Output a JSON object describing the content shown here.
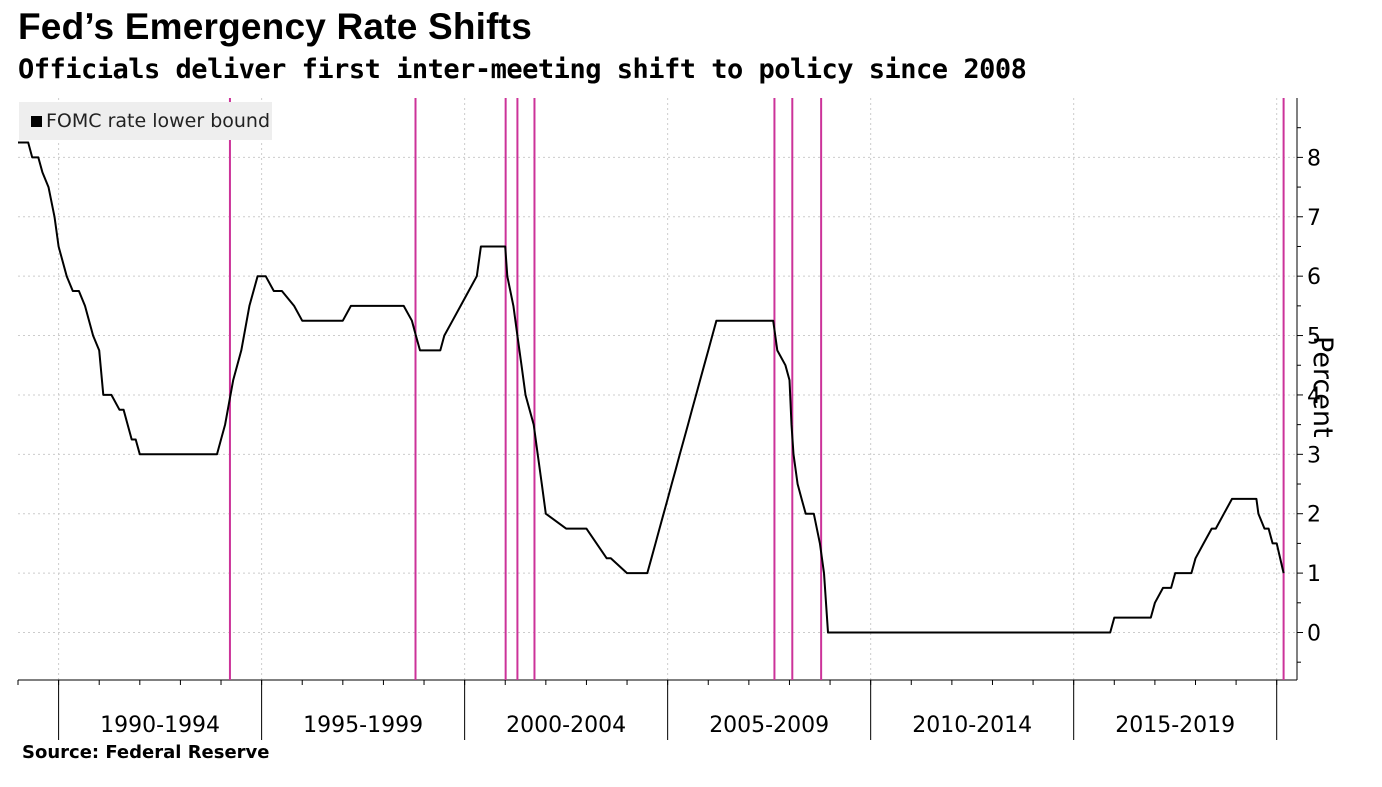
{
  "title": "Fed’s Emergency Rate Shifts",
  "subtitle": "Officials deliver first inter-meeting shift to policy since 2008",
  "source": "Source: Federal Reserve",
  "colors": {
    "line": "#000000",
    "emergency": "#cc3399",
    "grid": "#cccccc",
    "legend_bg": "#eeeeee"
  },
  "chart_data": {
    "type": "line",
    "title": "Fed’s Emergency Rate Shifts",
    "subtitle": "Officials deliver first inter-meeting shift to policy since 2008",
    "ylabel": "Percent",
    "xlabel": "",
    "ylim": [
      -0.8,
      9
    ],
    "yticks": [
      0,
      1,
      2,
      3,
      4,
      5,
      6,
      7,
      8
    ],
    "xlim": [
      1989.0,
      2020.5
    ],
    "x_ticks": [
      1990,
      1995,
      2000,
      2005,
      2010,
      2015,
      2020
    ],
    "x_tick_labels": [
      "1990-1994",
      "1995-1999",
      "2000-2004",
      "2005-2009",
      "2010-2014",
      "2015-2019"
    ],
    "legend": {
      "position": "top-left",
      "entries": [
        "FOMC rate lower bound"
      ]
    },
    "grid": true,
    "series": [
      {
        "name": "FOMC rate lower bound",
        "x": [
          1989.0,
          1989.25,
          1989.35,
          1989.5,
          1989.6,
          1989.75,
          1989.9,
          1990.0,
          1990.2,
          1990.35,
          1990.5,
          1990.65,
          1990.85,
          1991.0,
          1991.1,
          1991.3,
          1991.5,
          1991.6,
          1991.8,
          1991.9,
          1992.0,
          1992.2,
          1992.5,
          1993.0,
          1993.5,
          1993.9,
          1994.0,
          1994.1,
          1994.3,
          1994.5,
          1994.7,
          1994.9,
          1995.1,
          1995.3,
          1995.5,
          1995.8,
          1996.0,
          1996.5,
          1997.0,
          1997.2,
          1997.5,
          1998.0,
          1998.5,
          1998.7,
          1998.8,
          1998.9,
          1999.0,
          1999.4,
          1999.5,
          1999.7,
          1999.9,
          2000.1,
          2000.3,
          2000.4,
          2000.5,
          2001.0,
          2001.05,
          2001.2,
          2001.3,
          2001.4,
          2001.5,
          2001.6,
          2001.7,
          2001.8,
          2001.9,
          2002.0,
          2002.5,
          2002.9,
          2003.0,
          2003.5,
          2003.6,
          2004.0,
          2004.3,
          2004.5,
          2004.6,
          2004.7,
          2004.8,
          2004.9,
          2005.0,
          2005.1,
          2005.2,
          2005.3,
          2005.4,
          2005.5,
          2005.6,
          2005.7,
          2005.8,
          2005.9,
          2006.0,
          2006.1,
          2006.2,
          2006.3,
          2006.5,
          2007.0,
          2007.6,
          2007.7,
          2007.9,
          2008.0,
          2008.05,
          2008.1,
          2008.2,
          2008.3,
          2008.4,
          2008.6,
          2008.75,
          2008.85,
          2008.95,
          2010.0,
          2012.0,
          2014.0,
          2015.0,
          2015.9,
          2016.0,
          2016.5,
          2016.9,
          2017.0,
          2017.2,
          2017.4,
          2017.5,
          2017.9,
          2018.0,
          2018.2,
          2018.4,
          2018.5,
          2018.7,
          2018.9,
          2019.0,
          2019.5,
          2019.55,
          2019.7,
          2019.8,
          2019.9,
          2020.0,
          2020.17
        ],
        "y": [
          8.25,
          8.25,
          8.0,
          8.0,
          7.75,
          7.5,
          7.0,
          6.5,
          6.0,
          5.75,
          5.75,
          5.5,
          5.0,
          4.75,
          4.0,
          4.0,
          3.75,
          3.75,
          3.25,
          3.25,
          3.0,
          3.0,
          3.0,
          3.0,
          3.0,
          3.0,
          3.25,
          3.5,
          4.25,
          4.75,
          5.5,
          6.0,
          6.0,
          5.75,
          5.75,
          5.5,
          5.25,
          5.25,
          5.25,
          5.5,
          5.5,
          5.5,
          5.5,
          5.25,
          5.0,
          4.75,
          4.75,
          4.75,
          5.0,
          5.25,
          5.5,
          5.75,
          6.0,
          6.5,
          6.5,
          6.5,
          6.0,
          5.5,
          5.0,
          4.5,
          4.0,
          3.75,
          3.5,
          3.0,
          2.5,
          2.0,
          1.75,
          1.75,
          1.75,
          1.25,
          1.25,
          1.0,
          1.0,
          1.0,
          1.25,
          1.5,
          1.75,
          2.0,
          2.25,
          2.5,
          2.75,
          3.0,
          3.25,
          3.5,
          3.75,
          4.0,
          4.25,
          4.5,
          4.75,
          5.0,
          5.25,
          5.25,
          5.25,
          5.25,
          5.25,
          4.75,
          4.5,
          4.25,
          3.5,
          3.0,
          2.5,
          2.25,
          2.0,
          2.0,
          1.5,
          1.0,
          0.0,
          0.0,
          0.0,
          0.0,
          0.0,
          0.0,
          0.25,
          0.25,
          0.25,
          0.5,
          0.75,
          0.75,
          1.0,
          1.0,
          1.25,
          1.5,
          1.75,
          1.75,
          2.0,
          2.25,
          2.25,
          2.25,
          2.0,
          1.75,
          1.75,
          1.5,
          1.5,
          1.0
        ]
      }
    ],
    "emergency_moves": [
      1994.22,
      1998.79,
      2001.01,
      2001.3,
      2001.72,
      2007.63,
      2008.07,
      2008.78,
      2020.17
    ]
  }
}
